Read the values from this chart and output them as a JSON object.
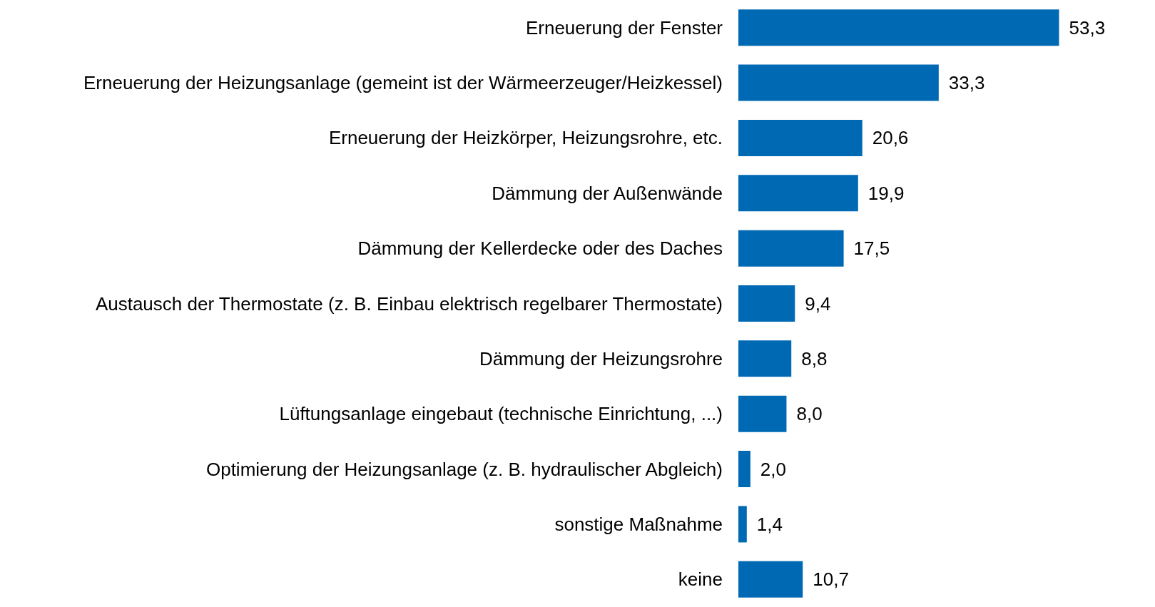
{
  "chart_data": {
    "type": "bar",
    "orientation": "horizontal",
    "categories": [
      "Erneuerung der Fenster",
      "Erneuerung der Heizungsanlage (gemeint ist der Wärmeerzeuger/Heizkessel)",
      "Erneuerung der Heizkörper, Heizungsrohre, etc.",
      "Dämmung der Außenwände",
      "Dämmung der Kellerdecke oder des Daches",
      "Austausch der Thermostate (z. B. Einbau elektrisch regelbarer Thermostate)",
      "Dämmung der Heizungsrohre",
      "Lüftungsanlage eingebaut (technische Einrichtung, ...)",
      "Optimierung der Heizungsanlage (z. B. hydraulischer Abgleich)",
      "sonstige Maßnahme",
      "keine"
    ],
    "values": [
      53.3,
      33.3,
      20.6,
      19.9,
      17.5,
      9.4,
      8.8,
      8.0,
      2.0,
      1.4,
      10.7
    ],
    "value_labels": [
      "53,3",
      "33,3",
      "20,6",
      "19,9",
      "17,5",
      "9,4",
      "8,8",
      "8,0",
      "2,0",
      "1,4",
      "10,7"
    ],
    "color": "#0069b4"
  }
}
